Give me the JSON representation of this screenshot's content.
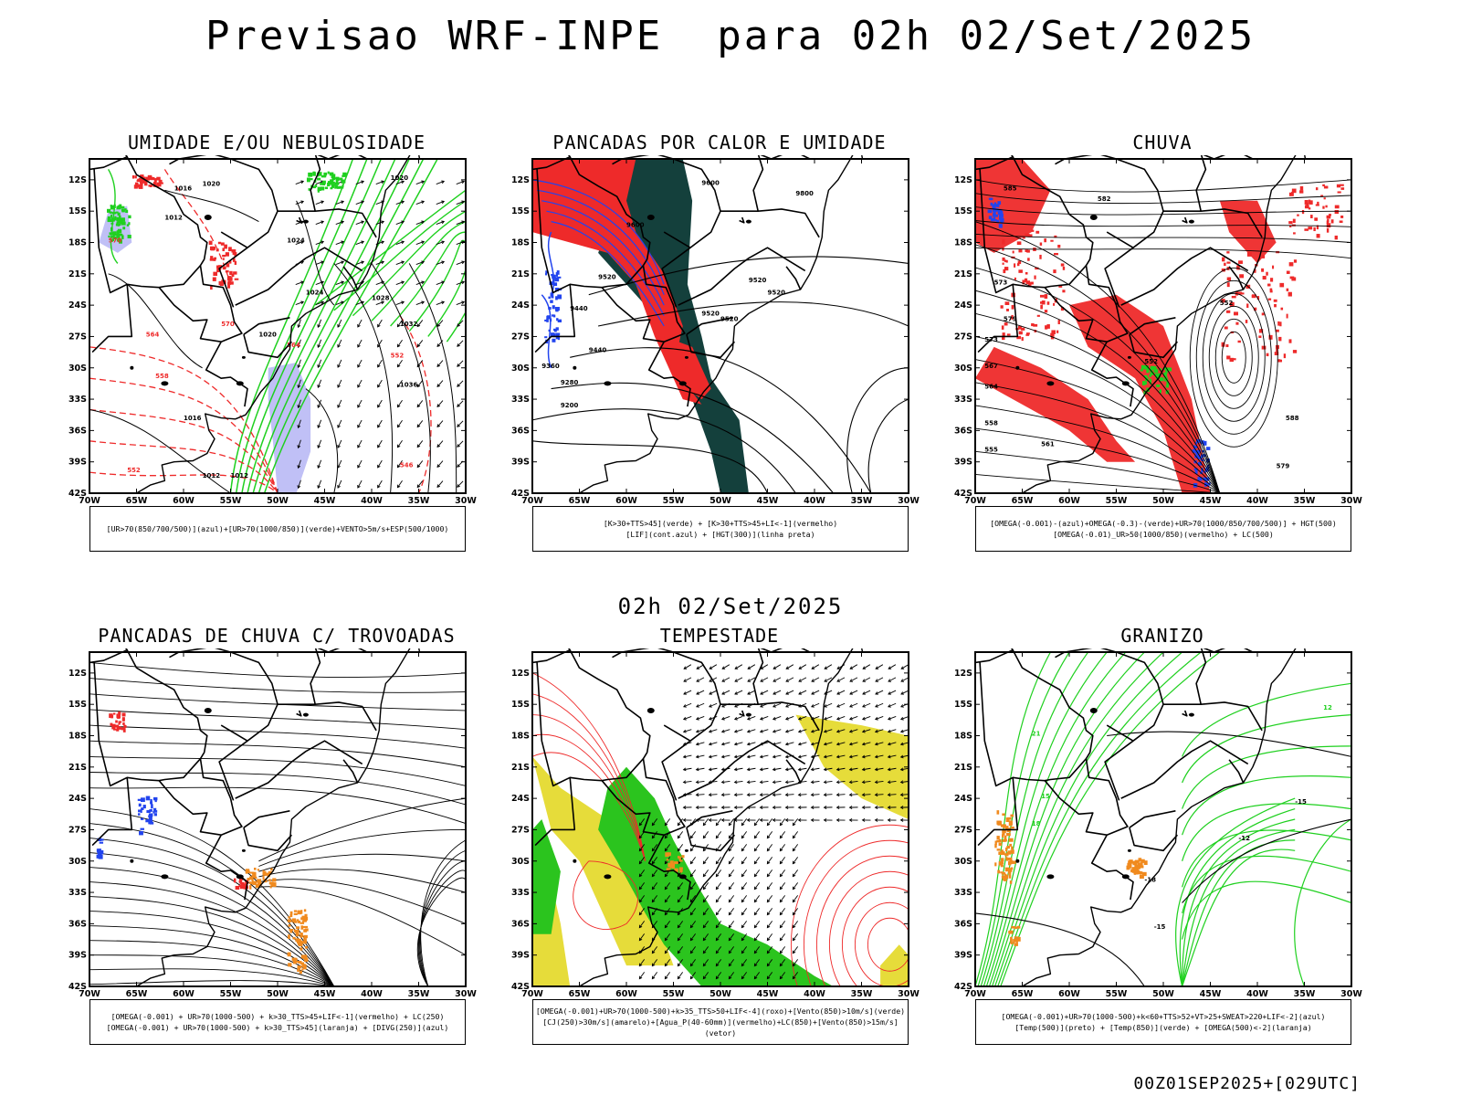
{
  "header": {
    "title": "Previsao WRF-INPE  para 02h 02/Set/2025",
    "mid_time": "02h 02/Set/2025",
    "footer_run": "00Z01SEP2025+[029UTC]"
  },
  "axes": {
    "lat_labels": [
      "12S",
      "15S",
      "18S",
      "21S",
      "24S",
      "27S",
      "30S",
      "33S",
      "36S",
      "39S",
      "42S"
    ],
    "lon_labels": [
      "70W",
      "65W",
      "60W",
      "55W",
      "50W",
      "45W",
      "40W",
      "35W",
      "30W"
    ]
  },
  "panels": [
    {
      "title": "UMIDADE E/OU NEBULOSIDADE",
      "legend": [
        "[UR>70(850/700/500)](azul)+[UR>70(1000/850)](verde)+VENTO>5m/s+ESP(500/1000)"
      ],
      "contour_labels": [
        "1020",
        "1016",
        "1012",
        "1024",
        "1028",
        "1032",
        "1036",
        "576",
        "570",
        "564",
        "558",
        "552",
        "546",
        "1008"
      ]
    },
    {
      "title": "PANCADAS POR CALOR E UMIDADE",
      "legend": [
        "[K>30+TTS>45](verde)  +  [K>30+TTS>45+LI<-1](vermelho)",
        "[LIF](cont.azul)  +  [HGT(300)](linha preta)"
      ],
      "contour_labels": [
        "9600",
        "9520",
        "9440",
        "9360",
        "9280",
        "9200",
        "9800"
      ]
    },
    {
      "title": "CHUVA",
      "legend": [
        "[OMEGA(-0.001)-(azul)+OMEGA(-0.3)-(verde)+UR>70(1000/850/700/500)]  +  HGT(500)",
        "[OMEGA(-0.01)_UR>50(1000/850)(vermelho)  +  LC(500)"
      ],
      "contour_labels": [
        "585",
        "582",
        "579",
        "576",
        "573",
        "567",
        "564",
        "561",
        "558",
        "555",
        "552",
        "588"
      ]
    },
    {
      "title": "PANCADAS DE CHUVA C/ TROVOADAS",
      "legend": [
        "[OMEGA(-0.001)  +  UR>70(1000-500)  +  k>30_TTS>45+LIF<-1](vermelho)  +  LC(250)",
        "[OMEGA(-0.001)  +  UR>70(1000-500)  +  k>30_TTS>45](laranja)  +  [DIVG(250)](azul)"
      ],
      "contour_labels": []
    },
    {
      "title": "TEMPESTADE",
      "legend": [
        "[OMEGA(-0.001)+UR>70(1000-500)+k>35_TTS>50+LIF<-4](roxo)+[Vento(850)>10m/s](verde)",
        "[CJ(250)>30m/s](amarelo)+[Agua_P(40-60mm)](vermelho)+LC(850)+[Vento(850)>15m/s](vetor)"
      ],
      "contour_labels": []
    },
    {
      "title": "GRANIZO",
      "legend": [
        "[OMEGA(-0.001)+UR>70(1000-500)+k<60+TTS>52+VT>25+SWEAT>220+LIF<-2](azul)",
        "[Temp(500)](preto)  +  [Temp(850)](verde)  +  [OMEGA(500)<-2](laranja)"
      ],
      "contour_labels": [
        "-12",
        "-15",
        "-18",
        "12",
        "15",
        "18",
        "21",
        "-21"
      ]
    }
  ],
  "colors": {
    "red": "#ee2a2a",
    "green": "#1fd01f",
    "blue": "#2244ee",
    "lightblue": "#b9b9f5",
    "darkteal": "#14403c",
    "teal2": "#2a6a60",
    "yellow": "#e6dc3a",
    "orange": "#f08a1e",
    "brightgreen": "#2bc41e"
  }
}
